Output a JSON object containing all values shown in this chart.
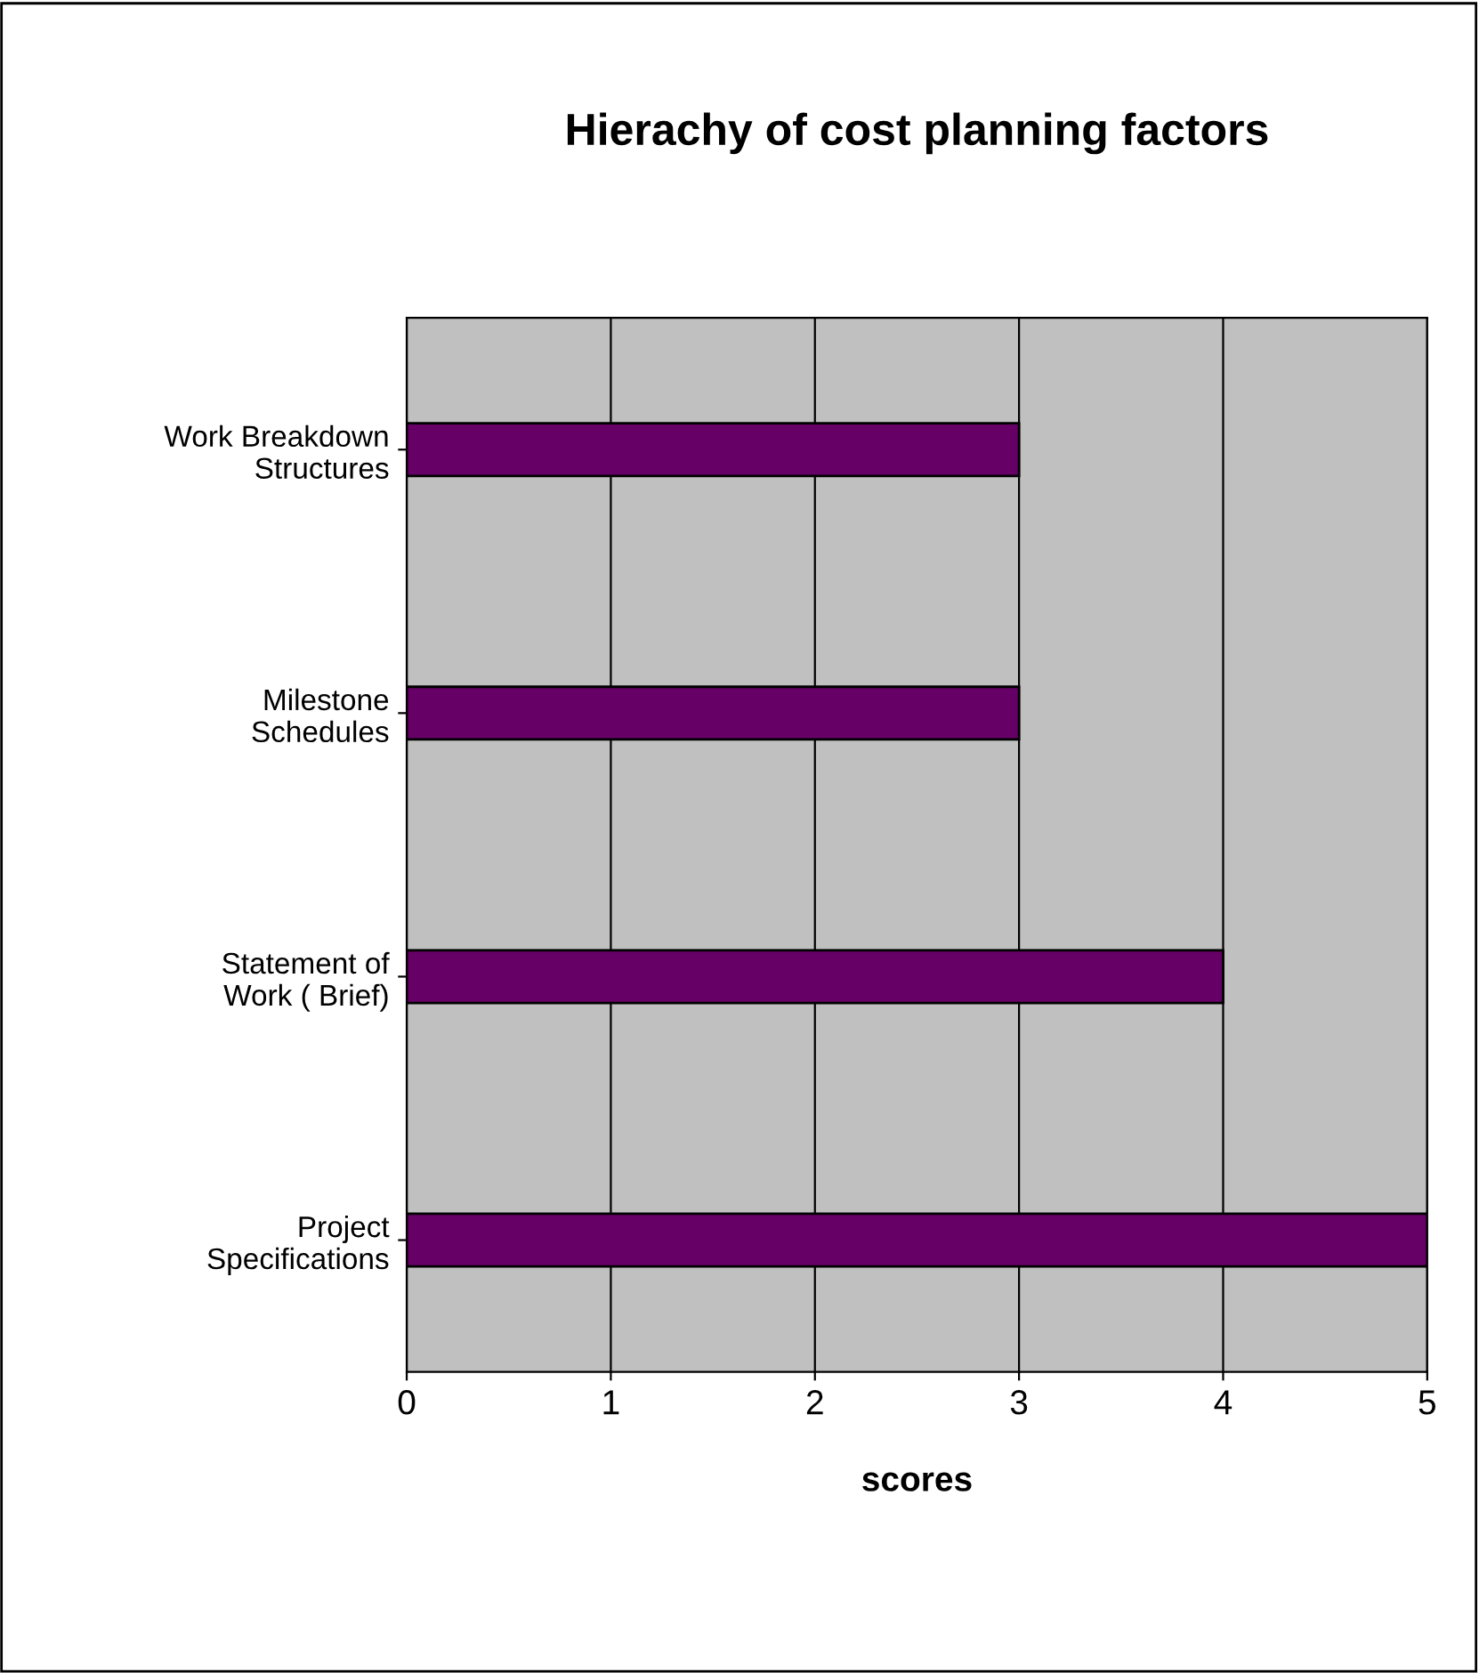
{
  "chart_data": {
    "type": "bar",
    "orientation": "horizontal",
    "title": "Hierachy of cost planning factors",
    "xlabel": "scores",
    "categories": [
      "Work Breakdown Structures",
      "Milestone Schedules",
      "Statement of Work ( Brief)",
      "Project Specifications"
    ],
    "values": [
      3,
      3,
      4,
      5
    ],
    "color": "#660066",
    "xlim": [
      0,
      5
    ],
    "xticks": [
      0,
      1,
      2,
      3,
      4,
      5
    ],
    "grid": "x"
  }
}
